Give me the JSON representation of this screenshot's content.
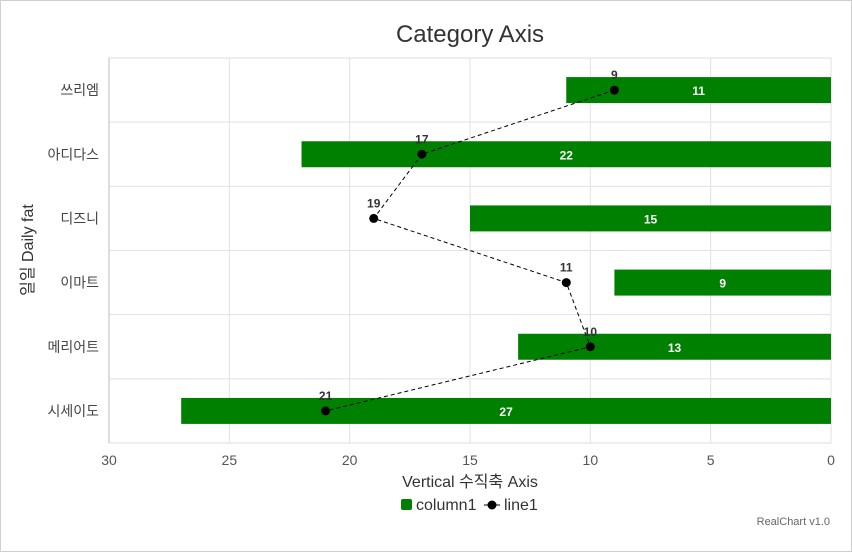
{
  "chart_data": {
    "type": "bar",
    "orientation": "horizontal",
    "title": "Category Axis",
    "xlabel": "Vertical 수직축 Axis",
    "ylabel": "일일 Daily fat",
    "categories": [
      "쓰리엠",
      "아디다스",
      "디즈니",
      "이마트",
      "메리어트",
      "시세이도"
    ],
    "xlim": [
      30,
      0
    ],
    "x_reversed": true,
    "x_ticks": [
      "30",
      "25",
      "20",
      "15",
      "10",
      "5",
      "0"
    ],
    "grid": true,
    "legend_position": "bottom",
    "series": [
      {
        "name": "column1",
        "kind": "bar",
        "color": "#008000",
        "values": [
          11,
          22,
          15,
          9,
          13,
          27
        ]
      },
      {
        "name": "line1",
        "kind": "line",
        "color": "#000000",
        "dashed": true,
        "values": [
          9,
          17,
          19,
          11,
          10,
          21
        ]
      }
    ]
  },
  "credit": "RealChart v1.0"
}
